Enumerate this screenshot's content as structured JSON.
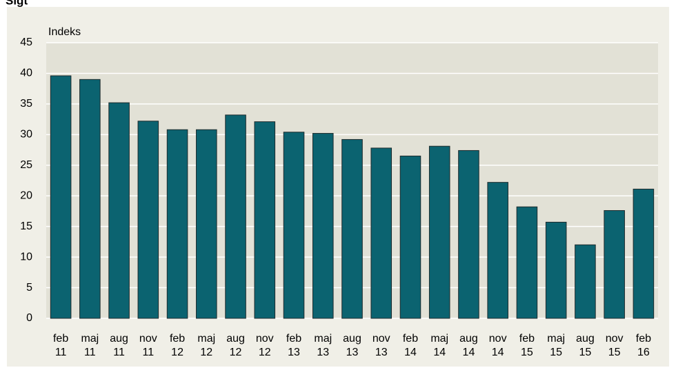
{
  "chart_data": {
    "type": "bar",
    "title": "Sigt",
    "ylabel": "Indeks",
    "categories": [
      "feb 11",
      "maj 11",
      "aug 11",
      "nov 11",
      "feb 12",
      "maj 12",
      "aug 12",
      "nov 12",
      "feb 13",
      "maj 13",
      "aug 13",
      "nov 13",
      "feb 14",
      "maj 14",
      "aug 14",
      "nov 14",
      "feb 15",
      "maj 15",
      "aug 15",
      "nov 15",
      "feb 16"
    ],
    "values": [
      39.6,
      39.0,
      35.2,
      32.2,
      30.8,
      30.8,
      33.2,
      32.1,
      30.4,
      30.2,
      29.2,
      27.8,
      26.5,
      28.1,
      27.4,
      22.2,
      18.2,
      15.7,
      12.0,
      17.6,
      21.1
    ],
    "color": "#0b6370",
    "ylim": [
      0,
      45
    ],
    "yticks": [
      0,
      5,
      10,
      15,
      20,
      25,
      30,
      35,
      40,
      45
    ],
    "grid": true
  }
}
